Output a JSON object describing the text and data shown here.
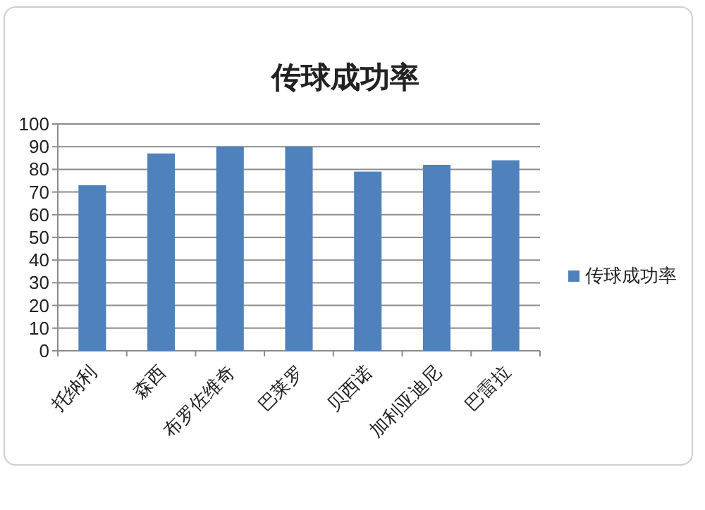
{
  "chart_data": {
    "type": "bar",
    "title": "传球成功率",
    "categories": [
      "托纳利",
      "森西",
      "布罗佐维奇",
      "巴莱罗",
      "贝西诺",
      "加利亚迪尼",
      "巴雷拉"
    ],
    "series": [
      {
        "name": "传球成功率",
        "color": "#4f81bd",
        "values": [
          73,
          87,
          90,
          90,
          79,
          82,
          84
        ]
      }
    ],
    "ylim": [
      0,
      100
    ],
    "yticks": [
      0,
      10,
      20,
      30,
      40,
      50,
      60,
      70,
      80,
      90,
      100
    ],
    "grid": "y",
    "legend": "right"
  }
}
